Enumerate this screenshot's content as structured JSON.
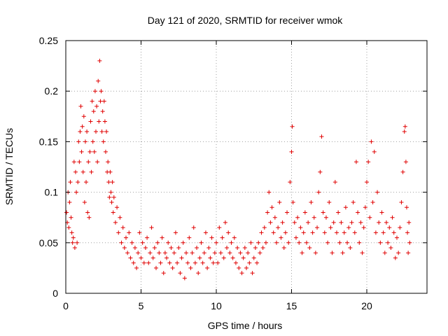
{
  "chart_data": {
    "type": "scatter",
    "title": "Day 121 of 2020, SRMTID for receiver wmok",
    "xlabel": "GPS time / hours",
    "ylabel": "SRMTID / TECUs",
    "xlim": [
      0,
      24
    ],
    "ylim": [
      0,
      0.25
    ],
    "x_ticks": [
      0,
      5,
      10,
      15,
      20
    ],
    "x_tick_labels": [
      "0",
      "5",
      "10",
      "15",
      "20"
    ],
    "y_ticks": [
      0,
      0.05,
      0.1,
      0.15,
      0.2,
      0.25
    ],
    "y_tick_labels": [
      "0",
      "0.05",
      "0.1",
      "0.15",
      "0.2",
      "0.25"
    ],
    "grid": true,
    "marker": "+",
    "series": [
      {
        "name": "SRMTID",
        "color": "#e00000",
        "points": [
          [
            0.05,
            0.08
          ],
          [
            0.1,
            0.07
          ],
          [
            0.15,
            0.1
          ],
          [
            0.2,
            0.065
          ],
          [
            0.25,
            0.09
          ],
          [
            0.3,
            0.11
          ],
          [
            0.35,
            0.075
          ],
          [
            0.4,
            0.06
          ],
          [
            0.45,
            0.05
          ],
          [
            0.5,
            0.055
          ],
          [
            0.55,
            0.13
          ],
          [
            0.6,
            0.045
          ],
          [
            0.65,
            0.12
          ],
          [
            0.7,
            0.1
          ],
          [
            0.75,
            0.05
          ],
          [
            0.8,
            0.11
          ],
          [
            0.85,
            0.15
          ],
          [
            0.9,
            0.13
          ],
          [
            0.95,
            0.16
          ],
          [
            1.0,
            0.185
          ],
          [
            1.05,
            0.14
          ],
          [
            1.1,
            0.165
          ],
          [
            1.15,
            0.12
          ],
          [
            1.2,
            0.175
          ],
          [
            1.25,
            0.09
          ],
          [
            1.3,
            0.15
          ],
          [
            1.35,
            0.11
          ],
          [
            1.4,
            0.16
          ],
          [
            1.45,
            0.08
          ],
          [
            1.5,
            0.13
          ],
          [
            1.55,
            0.075
          ],
          [
            1.6,
            0.14
          ],
          [
            1.65,
            0.17
          ],
          [
            1.7,
            0.12
          ],
          [
            1.75,
            0.19
          ],
          [
            1.8,
            0.15
          ],
          [
            1.85,
            0.18
          ],
          [
            1.9,
            0.14
          ],
          [
            1.95,
            0.2
          ],
          [
            2.0,
            0.16
          ],
          [
            2.05,
            0.185
          ],
          [
            2.1,
            0.13
          ],
          [
            2.15,
            0.21
          ],
          [
            2.2,
            0.17
          ],
          [
            2.25,
            0.23
          ],
          [
            2.3,
            0.19
          ],
          [
            2.35,
            0.2
          ],
          [
            2.4,
            0.16
          ],
          [
            2.45,
            0.18
          ],
          [
            2.5,
            0.15
          ],
          [
            2.55,
            0.19
          ],
          [
            2.6,
            0.17
          ],
          [
            2.65,
            0.14
          ],
          [
            2.7,
            0.16
          ],
          [
            2.75,
            0.12
          ],
          [
            2.8,
            0.13
          ],
          [
            2.85,
            0.11
          ],
          [
            2.9,
            0.095
          ],
          [
            2.95,
            0.12
          ],
          [
            3.0,
            0.1
          ],
          [
            3.05,
            0.09
          ],
          [
            3.1,
            0.11
          ],
          [
            3.15,
            0.08
          ],
          [
            3.2,
            0.095
          ],
          [
            3.3,
            0.07
          ],
          [
            3.4,
            0.085
          ],
          [
            3.5,
            0.06
          ],
          [
            3.6,
            0.075
          ],
          [
            3.7,
            0.05
          ],
          [
            3.8,
            0.065
          ],
          [
            3.9,
            0.045
          ],
          [
            4.0,
            0.055
          ],
          [
            4.1,
            0.04
          ],
          [
            4.2,
            0.06
          ],
          [
            4.3,
            0.035
          ],
          [
            4.4,
            0.05
          ],
          [
            4.5,
            0.03
          ],
          [
            4.6,
            0.045
          ],
          [
            4.7,
            0.025
          ],
          [
            4.8,
            0.04
          ],
          [
            4.9,
            0.06
          ],
          [
            5.0,
            0.035
          ],
          [
            5.1,
            0.05
          ],
          [
            5.2,
            0.03
          ],
          [
            5.3,
            0.045
          ],
          [
            5.4,
            0.055
          ],
          [
            5.5,
            0.03
          ],
          [
            5.6,
            0.04
          ],
          [
            5.7,
            0.065
          ],
          [
            5.8,
            0.035
          ],
          [
            5.9,
            0.045
          ],
          [
            6.0,
            0.025
          ],
          [
            6.1,
            0.05
          ],
          [
            6.2,
            0.04
          ],
          [
            6.3,
            0.03
          ],
          [
            6.4,
            0.055
          ],
          [
            6.5,
            0.02
          ],
          [
            6.6,
            0.04
          ],
          [
            6.7,
            0.035
          ],
          [
            6.8,
            0.05
          ],
          [
            6.9,
            0.03
          ],
          [
            7.0,
            0.045
          ],
          [
            7.1,
            0.025
          ],
          [
            7.2,
            0.04
          ],
          [
            7.3,
            0.06
          ],
          [
            7.4,
            0.03
          ],
          [
            7.5,
            0.045
          ],
          [
            7.6,
            0.02
          ],
          [
            7.7,
            0.035
          ],
          [
            7.8,
            0.05
          ],
          [
            7.9,
            0.015
          ],
          [
            8.0,
            0.04
          ],
          [
            8.1,
            0.03
          ],
          [
            8.2,
            0.055
          ],
          [
            8.3,
            0.025
          ],
          [
            8.4,
            0.04
          ],
          [
            8.5,
            0.065
          ],
          [
            8.6,
            0.03
          ],
          [
            8.7,
            0.045
          ],
          [
            8.8,
            0.02
          ],
          [
            8.9,
            0.035
          ],
          [
            9.0,
            0.05
          ],
          [
            9.1,
            0.03
          ],
          [
            9.2,
            0.04
          ],
          [
            9.3,
            0.06
          ],
          [
            9.4,
            0.025
          ],
          [
            9.5,
            0.045
          ],
          [
            9.6,
            0.035
          ],
          [
            9.7,
            0.055
          ],
          [
            9.8,
            0.03
          ],
          [
            9.9,
            0.04
          ],
          [
            10.0,
            0.05
          ],
          [
            10.1,
            0.03
          ],
          [
            10.2,
            0.065
          ],
          [
            10.3,
            0.04
          ],
          [
            10.4,
            0.055
          ],
          [
            10.5,
            0.035
          ],
          [
            10.6,
            0.07
          ],
          [
            10.7,
            0.045
          ],
          [
            10.8,
            0.06
          ],
          [
            10.9,
            0.04
          ],
          [
            11.0,
            0.05
          ],
          [
            11.1,
            0.035
          ],
          [
            11.2,
            0.055
          ],
          [
            11.3,
            0.03
          ],
          [
            11.4,
            0.045
          ],
          [
            11.5,
            0.025
          ],
          [
            11.6,
            0.04
          ],
          [
            11.7,
            0.02
          ],
          [
            11.8,
            0.035
          ],
          [
            11.9,
            0.045
          ],
          [
            12.0,
            0.025
          ],
          [
            12.1,
            0.04
          ],
          [
            12.2,
            0.03
          ],
          [
            12.3,
            0.05
          ],
          [
            12.4,
            0.02
          ],
          [
            12.5,
            0.035
          ],
          [
            12.6,
            0.045
          ],
          [
            12.7,
            0.03
          ],
          [
            12.8,
            0.05
          ],
          [
            12.9,
            0.04
          ],
          [
            13.0,
            0.06
          ],
          [
            13.1,
            0.045
          ],
          [
            13.2,
            0.065
          ],
          [
            13.3,
            0.05
          ],
          [
            13.4,
            0.08
          ],
          [
            13.5,
            0.1
          ],
          [
            13.6,
            0.07
          ],
          [
            13.7,
            0.085
          ],
          [
            13.8,
            0.06
          ],
          [
            13.9,
            0.075
          ],
          [
            14.0,
            0.05
          ],
          [
            14.1,
            0.065
          ],
          [
            14.2,
            0.09
          ],
          [
            14.3,
            0.055
          ],
          [
            14.4,
            0.07
          ],
          [
            14.5,
            0.045
          ],
          [
            14.6,
            0.06
          ],
          [
            14.7,
            0.08
          ],
          [
            14.8,
            0.05
          ],
          [
            14.9,
            0.11
          ],
          [
            15.0,
            0.14
          ],
          [
            15.05,
            0.165
          ],
          [
            15.1,
            0.09
          ],
          [
            15.2,
            0.07
          ],
          [
            15.3,
            0.055
          ],
          [
            15.4,
            0.075
          ],
          [
            15.5,
            0.05
          ],
          [
            15.6,
            0.065
          ],
          [
            15.7,
            0.04
          ],
          [
            15.8,
            0.06
          ],
          [
            15.9,
            0.08
          ],
          [
            16.0,
            0.05
          ],
          [
            16.1,
            0.07
          ],
          [
            16.2,
            0.045
          ],
          [
            16.3,
            0.09
          ],
          [
            16.4,
            0.06
          ],
          [
            16.5,
            0.075
          ],
          [
            16.6,
            0.04
          ],
          [
            16.7,
            0.065
          ],
          [
            16.8,
            0.1
          ],
          [
            16.9,
            0.12
          ],
          [
            17.0,
            0.155
          ],
          [
            17.1,
            0.08
          ],
          [
            17.2,
            0.06
          ],
          [
            17.3,
            0.075
          ],
          [
            17.4,
            0.05
          ],
          [
            17.5,
            0.09
          ],
          [
            17.6,
            0.065
          ],
          [
            17.7,
            0.04
          ],
          [
            17.8,
            0.07
          ],
          [
            17.9,
            0.11
          ],
          [
            18.0,
            0.06
          ],
          [
            18.1,
            0.08
          ],
          [
            18.2,
            0.05
          ],
          [
            18.3,
            0.07
          ],
          [
            18.4,
            0.04
          ],
          [
            18.5,
            0.06
          ],
          [
            18.6,
            0.085
          ],
          [
            18.7,
            0.05
          ],
          [
            18.8,
            0.065
          ],
          [
            18.9,
            0.045
          ],
          [
            19.0,
            0.07
          ],
          [
            19.1,
            0.09
          ],
          [
            19.2,
            0.06
          ],
          [
            19.3,
            0.13
          ],
          [
            19.4,
            0.08
          ],
          [
            19.5,
            0.05
          ],
          [
            19.6,
            0.07
          ],
          [
            19.7,
            0.04
          ],
          [
            19.8,
            0.065
          ],
          [
            19.9,
            0.085
          ],
          [
            20.0,
            0.11
          ],
          [
            20.1,
            0.13
          ],
          [
            20.2,
            0.075
          ],
          [
            20.3,
            0.15
          ],
          [
            20.4,
            0.09
          ],
          [
            20.5,
            0.14
          ],
          [
            20.6,
            0.06
          ],
          [
            20.7,
            0.1
          ],
          [
            20.8,
            0.07
          ],
          [
            20.9,
            0.05
          ],
          [
            21.0,
            0.08
          ],
          [
            21.1,
            0.06
          ],
          [
            21.2,
            0.04
          ],
          [
            21.3,
            0.07
          ],
          [
            21.4,
            0.05
          ],
          [
            21.5,
            0.065
          ],
          [
            21.6,
            0.045
          ],
          [
            21.7,
            0.075
          ],
          [
            21.8,
            0.06
          ],
          [
            21.9,
            0.035
          ],
          [
            22.0,
            0.055
          ],
          [
            22.1,
            0.04
          ],
          [
            22.2,
            0.065
          ],
          [
            22.3,
            0.09
          ],
          [
            22.4,
            0.12
          ],
          [
            22.5,
            0.16
          ],
          [
            22.55,
            0.165
          ],
          [
            22.6,
            0.13
          ],
          [
            22.65,
            0.085
          ],
          [
            22.7,
            0.06
          ],
          [
            22.75,
            0.04
          ],
          [
            22.8,
            0.07
          ],
          [
            22.85,
            0.05
          ]
        ]
      }
    ]
  }
}
